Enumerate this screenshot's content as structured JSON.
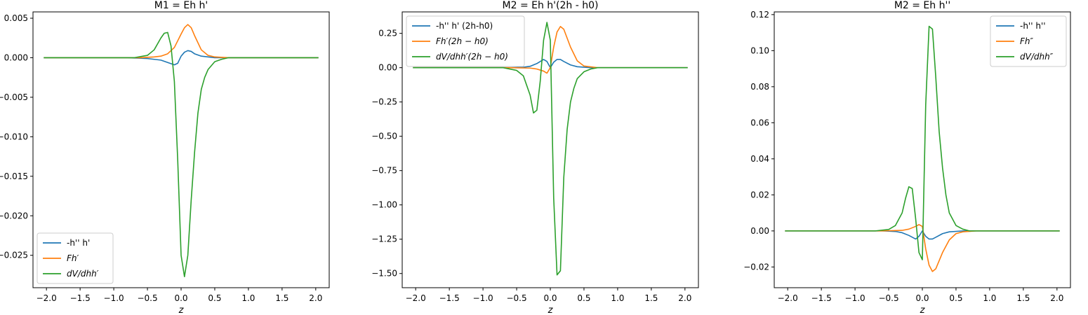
{
  "chart_data": [
    {
      "type": "line",
      "title": "M1 = Eh h'",
      "xlabel": "z",
      "ylabel": "",
      "xlim": [
        -2.2,
        2.2
      ],
      "ylim": [
        -0.0291,
        0.0058
      ],
      "xticks": [
        -2.0,
        -1.5,
        -1.0,
        -0.5,
        0.0,
        0.5,
        1.0,
        1.5,
        2.0
      ],
      "xtick_labels": [
        "−2.0",
        "−1.5",
        "−1.0",
        "−0.5",
        "0.0",
        "0.5",
        "1.0",
        "1.5",
        "2.0"
      ],
      "yticks": [
        0.005,
        0.0,
        -0.005,
        -0.01,
        -0.015,
        -0.02,
        -0.025
      ],
      "ytick_labels": [
        "0.005",
        "0.000",
        "−0.005",
        "−0.010",
        "−0.015",
        "−0.020",
        "−0.025"
      ],
      "legend_position": "lower-left",
      "series": [
        {
          "name": "-h'' h'",
          "color": "#1f77b4",
          "x": [
            -2.04,
            -0.8,
            -0.5,
            -0.3,
            -0.2,
            -0.1,
            -0.05,
            0.0,
            0.05,
            0.1,
            0.15,
            0.2,
            0.3,
            0.5,
            0.8,
            2.04
          ],
          "y": [
            0,
            0,
            -0.0001,
            -0.0003,
            -0.0006,
            -0.0009,
            -0.0007,
            0.0002,
            0.0007,
            0.0009,
            0.0008,
            0.0005,
            0.0002,
            0.0,
            0,
            0
          ]
        },
        {
          "name": "Fh′",
          "color": "#ff7f0e",
          "x": [
            -2.04,
            -0.6,
            -0.4,
            -0.3,
            -0.2,
            -0.1,
            0.0,
            0.05,
            0.1,
            0.15,
            0.2,
            0.3,
            0.4,
            0.5,
            0.7,
            2.04
          ],
          "y": [
            0,
            0,
            0.0001,
            0.0002,
            0.0005,
            0.0013,
            0.003,
            0.0038,
            0.0042,
            0.0038,
            0.0028,
            0.001,
            0.0003,
            0.0001,
            0,
            0
          ]
        },
        {
          "name": "dV/dhh′",
          "color": "#2ca02c",
          "x": [
            -2.04,
            -0.7,
            -0.5,
            -0.4,
            -0.3,
            -0.25,
            -0.2,
            -0.15,
            -0.1,
            -0.05,
            0.0,
            0.05,
            0.1,
            0.15,
            0.2,
            0.25,
            0.3,
            0.35,
            0.4,
            0.5,
            0.6,
            0.7,
            2.04
          ],
          "y": [
            0,
            0,
            0.0003,
            0.001,
            0.0025,
            0.0031,
            0.0032,
            0.0015,
            -0.003,
            -0.013,
            -0.025,
            -0.0277,
            -0.025,
            -0.018,
            -0.012,
            -0.007,
            -0.004,
            -0.0025,
            -0.0015,
            -0.0005,
            -0.0002,
            0,
            0
          ]
        }
      ]
    },
    {
      "type": "line",
      "title": "M2 = Eh h'(2h - h0)",
      "xlabel": "z",
      "ylabel": "",
      "xlim": [
        -2.2,
        2.2
      ],
      "ylim": [
        -1.6034,
        0.4064
      ],
      "xticks": [
        -2.0,
        -1.5,
        -1.0,
        -0.5,
        0.0,
        0.5,
        1.0,
        1.5,
        2.0
      ],
      "xtick_labels": [
        "−2.0",
        "−1.5",
        "−1.0",
        "−0.5",
        "0.0",
        "0.5",
        "1.0",
        "1.5",
        "2.0"
      ],
      "yticks": [
        0.25,
        0.0,
        -0.25,
        -0.5,
        -0.75,
        -1.0,
        -1.25,
        -1.5
      ],
      "ytick_labels": [
        "0.25",
        "0.00",
        "−0.25",
        "−0.50",
        "−0.75",
        "−1.00",
        "−1.25",
        "−1.50"
      ],
      "legend_position": "upper-left",
      "series": [
        {
          "name": "-h'' h' (2h-h0)",
          "color": "#1f77b4",
          "x": [
            -2.04,
            -0.6,
            -0.4,
            -0.3,
            -0.2,
            -0.1,
            -0.05,
            0.0,
            0.05,
            0.1,
            0.15,
            0.2,
            0.3,
            0.4,
            0.6,
            2.04
          ],
          "y": [
            0,
            0,
            0.003,
            0.01,
            0.03,
            0.06,
            0.045,
            0.0,
            0.04,
            0.06,
            0.06,
            0.045,
            0.02,
            0.007,
            0,
            0
          ]
        },
        {
          "name": "Fh′(2h − h0)",
          "color": "#ff7f0e",
          "x": [
            -2.04,
            -0.6,
            -0.3,
            -0.2,
            -0.1,
            -0.05,
            0.0,
            0.05,
            0.1,
            0.15,
            0.2,
            0.3,
            0.4,
            0.5,
            0.7,
            2.04
          ],
          "y": [
            0,
            0,
            -0.003,
            -0.01,
            -0.025,
            -0.04,
            0.0,
            0.15,
            0.26,
            0.3,
            0.28,
            0.15,
            0.05,
            0.012,
            0,
            0
          ]
        },
        {
          "name": "dV/dhh′(2h − h0)",
          "color": "#2ca02c",
          "x": [
            -2.04,
            -0.7,
            -0.5,
            -0.4,
            -0.3,
            -0.25,
            -0.2,
            -0.15,
            -0.1,
            -0.05,
            0.0,
            0.05,
            0.1,
            0.15,
            0.2,
            0.25,
            0.3,
            0.35,
            0.4,
            0.5,
            0.6,
            0.7,
            2.04
          ],
          "y": [
            0,
            0,
            -0.02,
            -0.06,
            -0.2,
            -0.33,
            -0.31,
            -0.1,
            0.2,
            0.33,
            0.2,
            -0.95,
            -1.51,
            -1.48,
            -0.8,
            -0.45,
            -0.25,
            -0.15,
            -0.08,
            -0.03,
            -0.01,
            0,
            0
          ]
        }
      ]
    },
    {
      "type": "line",
      "title": "M2 = Eh h''",
      "xlabel": "z",
      "ylabel": "",
      "xlim": [
        -2.2,
        2.2
      ],
      "ylim": [
        -0.0315,
        0.1215
      ],
      "xticks": [
        -2.0,
        -1.5,
        -1.0,
        -0.5,
        0.0,
        0.5,
        1.0,
        1.5,
        2.0
      ],
      "xtick_labels": [
        "−2.0",
        "−1.5",
        "−1.0",
        "−0.5",
        "0.0",
        "0.5",
        "1.0",
        "1.5",
        "2.0"
      ],
      "yticks": [
        0.12,
        0.1,
        0.08,
        0.06,
        0.04,
        0.02,
        0.0,
        -0.02
      ],
      "ytick_labels": [
        "0.12",
        "0.10",
        "0.08",
        "0.06",
        "0.04",
        "0.02",
        "0.00",
        "−0.02"
      ],
      "legend_position": "upper-right",
      "series": [
        {
          "name": "-h'' h''",
          "color": "#1f77b4",
          "x": [
            -2.04,
            -0.6,
            -0.4,
            -0.3,
            -0.2,
            -0.1,
            -0.05,
            0.0,
            0.05,
            0.1,
            0.15,
            0.2,
            0.3,
            0.4,
            0.6,
            2.04
          ],
          "y": [
            0,
            0,
            -0.0003,
            -0.001,
            -0.0025,
            -0.0045,
            -0.003,
            0.0,
            -0.003,
            -0.0045,
            -0.0045,
            -0.0035,
            -0.0015,
            -0.0005,
            0,
            0
          ]
        },
        {
          "name": "Fh″",
          "color": "#ff7f0e",
          "x": [
            -2.04,
            -0.6,
            -0.3,
            -0.2,
            -0.1,
            -0.05,
            0.0,
            0.05,
            0.1,
            0.15,
            0.2,
            0.3,
            0.4,
            0.5,
            0.6,
            0.8,
            2.04
          ],
          "y": [
            0,
            0,
            0.0003,
            0.001,
            0.0025,
            0.0035,
            0.0025,
            -0.01,
            -0.019,
            -0.0225,
            -0.021,
            -0.012,
            -0.005,
            -0.0015,
            -0.0005,
            0,
            0
          ]
        },
        {
          "name": "dV/dhh″",
          "color": "#2ca02c",
          "x": [
            -2.04,
            -0.7,
            -0.5,
            -0.4,
            -0.3,
            -0.25,
            -0.2,
            -0.15,
            -0.1,
            -0.05,
            0.0,
            0.05,
            0.1,
            0.15,
            0.2,
            0.25,
            0.3,
            0.35,
            0.4,
            0.5,
            0.6,
            0.7,
            2.04
          ],
          "y": [
            0,
            0,
            0.0008,
            0.003,
            0.01,
            0.018,
            0.0245,
            0.0235,
            0.007,
            -0.012,
            -0.016,
            0.07,
            0.1135,
            0.112,
            0.085,
            0.055,
            0.035,
            0.02,
            0.01,
            0.003,
            0.001,
            0,
            0
          ]
        }
      ]
    }
  ]
}
